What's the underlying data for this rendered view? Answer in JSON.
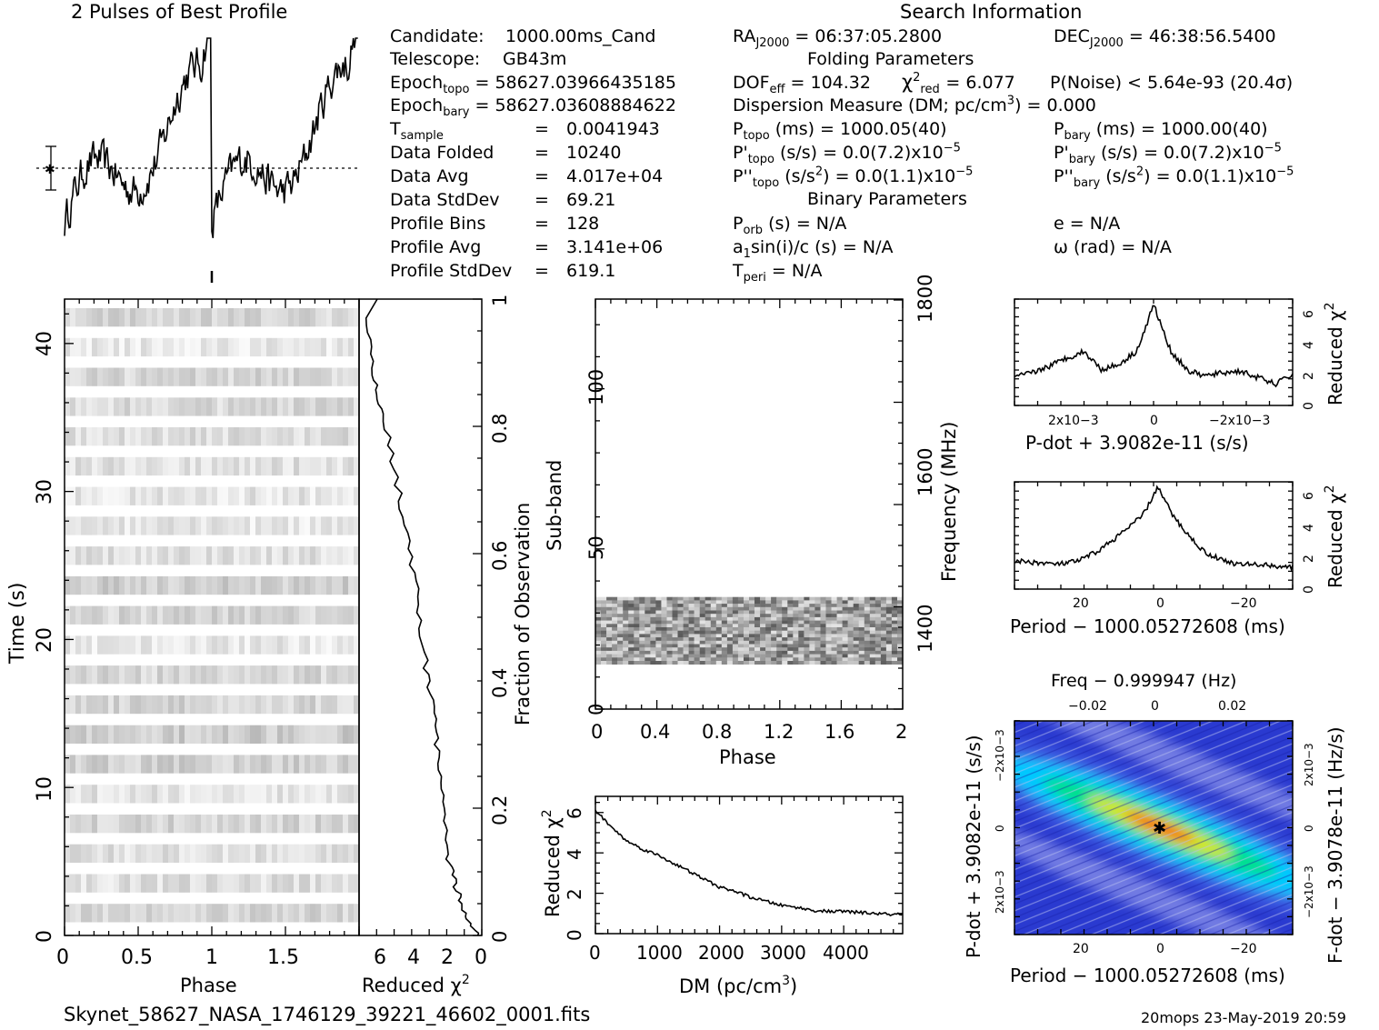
{
  "header": {
    "profile_title": "2 Pulses of Best Profile",
    "search_title": "Search Information",
    "folding_title": "Folding Parameters",
    "binary_title": "Binary Parameters",
    "filename": "Skynet_58627_NASA_1746129_39221_46602_0001.fits",
    "stamp": "20mops 23-May-2019 20:59"
  },
  "info": {
    "candidate_label": "Candidate:",
    "candidate_value": "1000.00ms_Cand",
    "telescope_label": "Telescope:",
    "telescope_value": "GB43m",
    "epoch_topo_label": "Epoch",
    "epoch_topo_sub": "topo",
    "epoch_topo_value": "= 58627.03966435185",
    "epoch_bary_label": "Epoch",
    "epoch_bary_sub": "bary",
    "epoch_bary_value": "= 58627.03608884622",
    "tsample_label": "T",
    "tsample_sub": "sample",
    "tsample_value": "0.0041943",
    "data_folded_label": "Data Folded",
    "data_folded_value": "10240",
    "data_avg_label": "Data Avg",
    "data_avg_value": "4.017e+04",
    "data_stddev_label": "Data StdDev",
    "data_stddev_value": "69.21",
    "profile_bins_label": "Profile Bins",
    "profile_bins_value": "128",
    "profile_avg_label": "Profile Avg",
    "profile_avg_value": "3.141e+06",
    "profile_stddev_label": "Profile StdDev",
    "profile_stddev_value": "619.1",
    "eq": "="
  },
  "search": {
    "ra_label": "RA",
    "ra_sub": "J2000",
    "ra_value": "= 06:37:05.2800",
    "dec_label": "DEC",
    "dec_sub": "J2000",
    "dec_value": "= 46:38:56.5400",
    "dof_label": "DOF",
    "dof_sub": "eff",
    "dof_value": "= 104.32",
    "chi_label": "χ",
    "chi_sup": "2",
    "chi_sub": "red",
    "chi_value": "= 6.077",
    "pnoise": "P(Noise) < 5.64e-93   (20.4σ)",
    "dm_text": "Dispersion Measure (DM; pc/cm",
    "dm_sup": "3",
    "dm_value": ") = 0.000",
    "ptopo_label": "P",
    "ptopo_sub": "topo",
    "ptopo_value": "(ms)  =   1000.05(40)",
    "pbary_label": "P",
    "pbary_sub": "bary",
    "pbary_value": "(ms)  =   1000.00(40)",
    "pdtopo_label": "P'",
    "pdtopo_sub": "topo",
    "pdtopo_value": "(s/s) = 0.0(7.2)x10",
    "pdtopo_exp": "−5",
    "pdbary_label": "P'",
    "pdbary_sub": "bary",
    "pdbary_value": "(s/s) = 0.0(7.2)x10",
    "pdbary_exp": "−5",
    "pddtopo_label": "P''",
    "pddtopo_sub": "topo",
    "pddtopo_value": "(s/s",
    "pddtopo_sup": "2",
    "pddtopo_tail": ") = 0.0(1.1)x10",
    "pddtopo_exp": "−5",
    "pddbary_label": "P''",
    "pddbary_sub": "bary",
    "pddbary_value": "(s/s",
    "pddbary_sup": "2",
    "pddbary_tail": ") = 0.0(1.1)x10",
    "pddbary_exp": "−5",
    "porb_label": "P",
    "porb_sub": "orb",
    "porb_value": "(s) = N/A",
    "e_text": "e = N/A",
    "a1_label": "a",
    "a1_sub": "1",
    "a1_value": "sin(i)/c (s) = N/A",
    "omega_text": "ω (rad) = N/A",
    "tperi_label": "T",
    "tperi_sub": "peri",
    "tperi_value": "= N/A"
  },
  "chart_data": [
    {
      "id": "pulse_profile",
      "type": "line",
      "title": "2 Pulses of Best Profile",
      "x": "phase 0-2 (two pulses, 128 bins each)",
      "description_values": {
        "baseline_level": "dotted line at profile avg",
        "peak_phase": 0.97
      }
    },
    {
      "id": "time_phase",
      "type": "heatmap",
      "xlabel": "Phase",
      "ylabel": "Time (s)",
      "xlim": [
        0,
        2
      ],
      "ylim": [
        0,
        43
      ],
      "x_ticks": [
        "0",
        "0.5",
        "1",
        "1.5"
      ],
      "y_ticks": [
        "0",
        "10",
        "20",
        "30",
        "40"
      ]
    },
    {
      "id": "chi_vs_time",
      "type": "line",
      "xlabel": "Reduced χ2",
      "ylabel": "Fraction of Observation",
      "xlim": [
        7,
        0
      ],
      "ylim": [
        0,
        1
      ],
      "x_ticks": [
        "6",
        "4",
        "2",
        "0"
      ],
      "y_ticks": [
        "0",
        "0.2",
        "0.4",
        "0.6",
        "0.8",
        "1"
      ],
      "x": [
        0.2,
        0.9,
        1.4,
        1.9,
        2.1,
        2.5,
        2.7,
        3.2,
        3.6,
        4.2,
        4.9,
        5.6,
        6.2,
        6.6
      ],
      "y": [
        0.0,
        0.03,
        0.07,
        0.12,
        0.18,
        0.26,
        0.34,
        0.42,
        0.52,
        0.62,
        0.72,
        0.82,
        0.88,
        0.97
      ]
    },
    {
      "id": "subband_phase",
      "type": "heatmap",
      "xlabel": "Phase",
      "ylabel": "Sub-band",
      "y2label": "Frequency (MHz)",
      "xlim": [
        0,
        2
      ],
      "ylim": [
        0,
        128
      ],
      "x_ticks": [
        "0",
        "0.4",
        "0.8",
        "1.2",
        "1.6",
        "2"
      ],
      "y_ticks": [
        "0",
        "50",
        "100"
      ],
      "y2_ticks": [
        "1400",
        "1600",
        "1800"
      ],
      "filled_subbands": [
        14,
        35
      ]
    },
    {
      "id": "chi_vs_dm",
      "type": "line",
      "xlabel": "DM (pc/cm3)",
      "ylabel": "Reduced χ2",
      "xlim": [
        0,
        4950
      ],
      "ylim": [
        0,
        6.8
      ],
      "x_ticks": [
        "0",
        "1000",
        "2000",
        "3000",
        "4000"
      ],
      "y_ticks": [
        "0",
        "2",
        "4",
        "6"
      ],
      "x": [
        0,
        250,
        500,
        750,
        1000,
        1250,
        1500,
        1750,
        2000,
        2250,
        2500,
        2750,
        3000,
        3250,
        3500,
        3750,
        4000,
        4250,
        4500,
        4750,
        4950
      ],
      "y": [
        6.1,
        5.3,
        4.6,
        4.2,
        3.9,
        3.5,
        3.1,
        2.7,
        2.3,
        2.1,
        1.8,
        1.6,
        1.4,
        1.3,
        1.15,
        1.1,
        1.1,
        1.05,
        1.0,
        0.95,
        0.95
      ]
    },
    {
      "id": "chi_vs_pdot",
      "type": "line",
      "xlabel": "P-dot + 3.9082e-11 (s/s)",
      "ylabel": "Reduced χ2",
      "ylim": [
        0,
        6.5
      ],
      "x_ticks": [
        "2x10−3",
        "0",
        "−2x10−3"
      ],
      "y_ticks": [
        "0",
        "2",
        "4",
        "6"
      ],
      "x": [
        3.2,
        2.8,
        2.4,
        2.0,
        1.6,
        1.2,
        0.8,
        0.4,
        0.2,
        0.0,
        -0.2,
        -0.4,
        -0.8,
        -1.2,
        -1.6,
        -2.0,
        -2.4,
        -2.8,
        -3.2
      ],
      "y": [
        1.7,
        2.0,
        2.4,
        2.9,
        3.3,
        2.2,
        2.5,
        3.3,
        4.6,
        6.2,
        4.7,
        3.3,
        2.1,
        1.8,
        2.0,
        2.1,
        1.7,
        1.3,
        1.9
      ]
    },
    {
      "id": "chi_vs_period",
      "type": "line",
      "xlabel": "Period − 1000.05272608 (ms)",
      "ylabel": "Reduced χ2",
      "ylim": [
        0,
        6.5
      ],
      "x_ticks": [
        "20",
        "0",
        "−20"
      ],
      "y_ticks": [
        "0",
        "2",
        "4",
        "6"
      ],
      "x": [
        36,
        30,
        25,
        20,
        15,
        10,
        7,
        4,
        2,
        0,
        -2,
        -4,
        -8,
        -12,
        -16,
        -20,
        -25,
        -30,
        -34
      ],
      "y": [
        1.7,
        1.6,
        1.5,
        1.7,
        2.3,
        3.2,
        3.8,
        4.4,
        5.2,
        6.2,
        5.3,
        4.4,
        3.2,
        2.2,
        1.8,
        1.5,
        1.5,
        1.4,
        1.3
      ]
    },
    {
      "id": "period_pdot_map",
      "type": "heatmap",
      "xlabel": "Period − 1000.05272608 (ms)",
      "ylabel": "P-dot + 3.9082e-11 (s/s)",
      "x2label": "Freq − 0.999947 (Hz)",
      "y2label": "F-dot − 3.9078e-11 (Hz/s)",
      "x_ticks": [
        "20",
        "0",
        "−20"
      ],
      "x2_ticks": [
        "−0.02",
        "0",
        "0.02"
      ],
      "y_ticks": [
        "−2x10−3",
        "0",
        "2x10−3"
      ],
      "y2_ticks": [
        "2x10−3",
        "0",
        "−2x10−3"
      ],
      "peak": [
        0,
        0
      ],
      "colors": [
        "#2030c8",
        "#3a58e0",
        "#00c8ff",
        "#00e090",
        "#d8e800",
        "#ff2000"
      ]
    }
  ],
  "axis_labels": {
    "phase": "Phase",
    "time": "Time (s)",
    "reduced": "Reduced χ",
    "two": "2",
    "fraction": "Fraction of Observation",
    "subband": "Sub-band",
    "frequency": "Frequency (MHz)",
    "dm": "DM (pc/cm",
    "three": "3",
    "close": ")",
    "pdot_axis": "P-dot + 3.9082e-11 (s/s)",
    "period_axis": "Period − 1000.05272608 (ms)",
    "freq_axis": "Freq − 0.999947 (Hz)",
    "pdot_map_axis": "P-dot + 3.9082e-11 (s/s)",
    "fdot_map_axis": "F-dot − 3.9078e-11 (Hz/s)"
  }
}
